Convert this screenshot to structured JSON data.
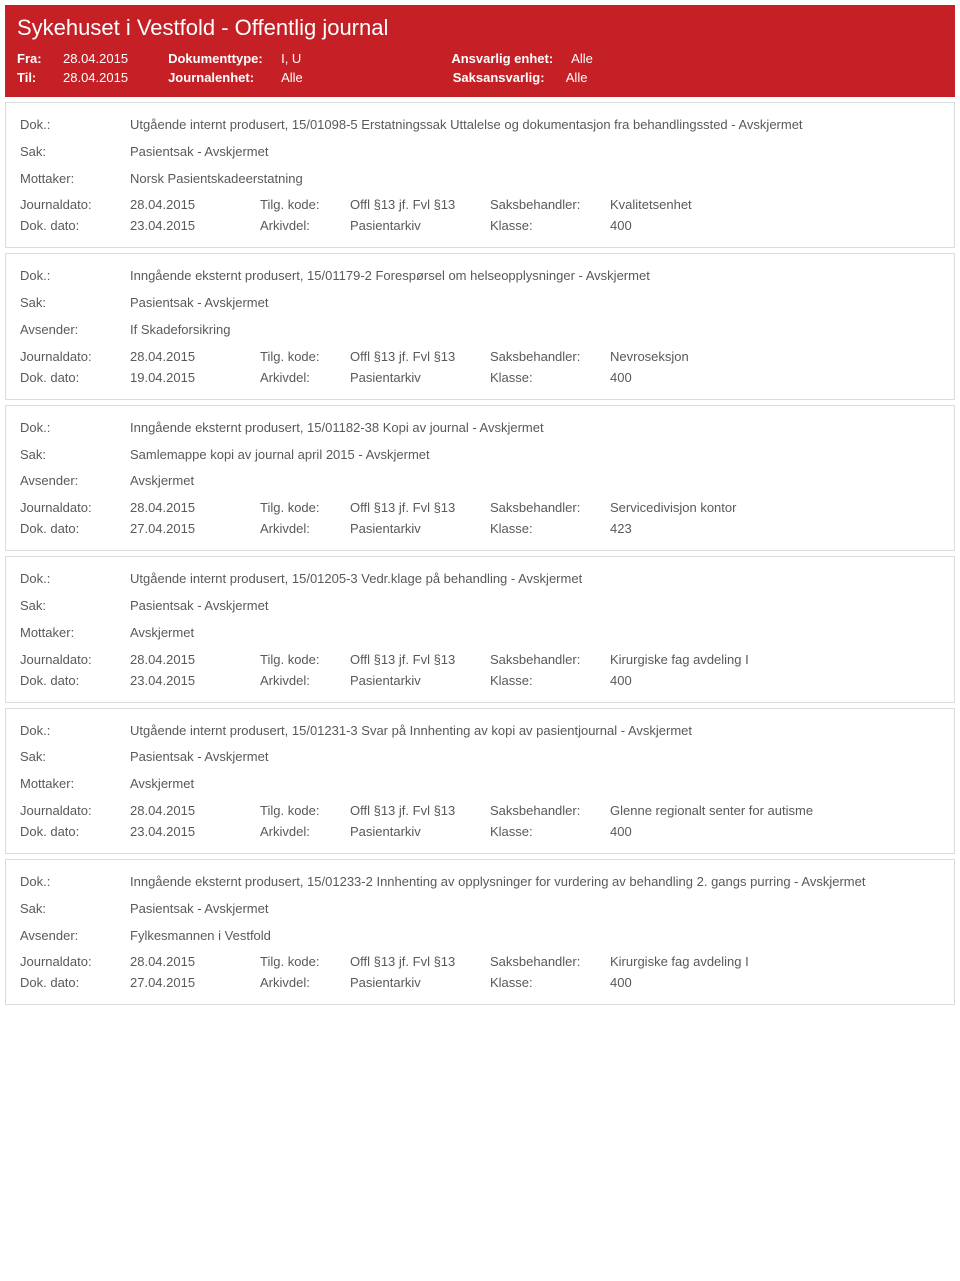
{
  "header": {
    "title": "Sykehuset i Vestfold - Offentlig journal",
    "fra_label": "Fra:",
    "fra": "28.04.2015",
    "til_label": "Til:",
    "til": "28.04.2015",
    "doktype_label": "Dokumenttype:",
    "doktype": "I, U",
    "journalenhet_label": "Journalenhet:",
    "journalenhet": "Alle",
    "ansvarlig_label": "Ansvarlig enhet:",
    "ansvarlig": "Alle",
    "saksansvarlig_label": "Saksansvarlig:",
    "saksansvarlig": "Alle"
  },
  "labels": {
    "dok": "Dok.:",
    "sak": "Sak:",
    "mottaker": "Mottaker:",
    "avsender": "Avsender:",
    "journaldato": "Journaldato:",
    "dokdato": "Dok. dato:",
    "tilgkode": "Tilg. kode:",
    "arkivdel": "Arkivdel:",
    "saksbeh": "Saksbehandler:",
    "klasse": "Klasse:"
  },
  "common": {
    "journaldato": "28.04.2015",
    "tilgkode": "Offl §13 jf. Fvl §13",
    "arkivdel": "Pasientarkiv",
    "avskjermet": "Avskjermet",
    "pasientsak": "Pasientsak - Avskjermet"
  },
  "entries": [
    {
      "dok": "Utgående internt produsert, 15/01098-5 Erstatningssak Uttalelse og dokumentasjon fra behandlingssted - Avskjermet",
      "sak": "Pasientsak - Avskjermet",
      "party_label": "Mottaker:",
      "party": "Norsk Pasientskadeerstatning",
      "dokdato": "23.04.2015",
      "saksbeh": "Kvalitetsenhet",
      "klasse": "400"
    },
    {
      "dok": "Inngående eksternt produsert, 15/01179-2 Forespørsel om helseopplysninger - Avskjermet",
      "sak": "Pasientsak - Avskjermet",
      "party_label": "Avsender:",
      "party": "If Skadeforsikring",
      "dokdato": "19.04.2015",
      "saksbeh": "Nevroseksjon",
      "klasse": "400"
    },
    {
      "dok": "Inngående eksternt produsert, 15/01182-38 Kopi av journal - Avskjermet",
      "sak": "Samlemappe kopi av journal april 2015 - Avskjermet",
      "party_label": "Avsender:",
      "party": "Avskjermet",
      "dokdato": "27.04.2015",
      "saksbeh": "Servicedivisjon kontor",
      "klasse": "423"
    },
    {
      "dok": "Utgående internt produsert, 15/01205-3 Vedr.klage på behandling - Avskjermet",
      "sak": "Pasientsak - Avskjermet",
      "party_label": "Mottaker:",
      "party": "Avskjermet",
      "dokdato": "23.04.2015",
      "saksbeh": "Kirurgiske fag avdeling I",
      "klasse": "400"
    },
    {
      "dok": "Utgående internt produsert, 15/01231-3 Svar på  Innhenting av kopi av pasientjournal - Avskjermet",
      "sak": "Pasientsak - Avskjermet",
      "party_label": "Mottaker:",
      "party": "Avskjermet",
      "dokdato": "23.04.2015",
      "saksbeh": "Glenne regionalt senter for autisme",
      "klasse": "400"
    },
    {
      "dok": "Inngående eksternt produsert, 15/01233-2 Innhenting av opplysninger for vurdering av behandling 2. gangs purring - Avskjermet",
      "sak": "Pasientsak - Avskjermet",
      "party_label": "Avsender:",
      "party": "Fylkesmannen i Vestfold",
      "dokdato": "27.04.2015",
      "saksbeh": "Kirurgiske fag avdeling I",
      "klasse": "400"
    }
  ]
}
